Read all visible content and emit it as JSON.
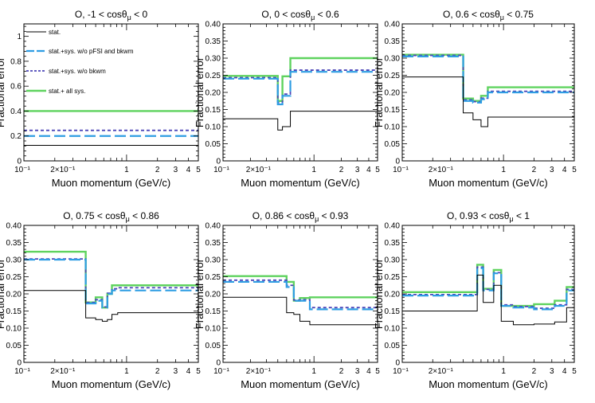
{
  "figure": {
    "shared_xlabel": "Muon momentum (GeV/c)",
    "shared_ylabel": "Fractional error"
  },
  "legend": [
    {
      "series": "stat",
      "label": "stat."
    },
    {
      "series": "stat_sys_no_pfsi_bkwm",
      "label": "stat.+sys. w/o pFSI and bkwm"
    },
    {
      "series": "stat_sys_no_bkwm",
      "label": "stat.+sys. w/o bkwm"
    },
    {
      "series": "stat_all_sys",
      "label": "stat.+ all sys."
    }
  ],
  "styles": {
    "stat": {
      "color": "#000000",
      "width": 1.0,
      "dash": ""
    },
    "stat_sys_no_pfsi_bkwm": {
      "color": "#2f9de3",
      "width": 2.2,
      "dash": "14,5"
    },
    "stat_sys_no_bkwm": {
      "color": "#4b45b8",
      "width": 1.8,
      "dash": "4,3"
    },
    "stat_all_sys": {
      "color": "#5fd35f",
      "width": 2.4,
      "dash": ""
    }
  },
  "chart_data": [
    {
      "type": "line",
      "step": true,
      "title": "O, -1 < cosθ_μ < 0",
      "title_parts": {
        "main": "O, -1 < cosθ",
        "sub": "μ",
        "tail": " < 0"
      },
      "xlabel": "Muon momentum (GeV/c)",
      "ylabel": "Fractional error",
      "xscale": "log",
      "xlim": [
        0.1,
        5
      ],
      "ylim": [
        0,
        1.1
      ],
      "yticks": [
        0,
        0.2,
        0.4,
        0.6,
        0.8,
        1
      ],
      "ytick_labels": [
        "0",
        "0.2",
        "0.4",
        "0.6",
        "0.8",
        "1"
      ],
      "xticks": [
        0.1,
        0.2,
        1,
        2,
        3,
        4,
        5
      ],
      "xtick_labels": [
        "10⁻¹",
        "2×10⁻¹",
        "1",
        "2",
        "3",
        "4",
        "5"
      ],
      "legend_position": "top-left",
      "bin_edges": [
        0.1,
        5
      ],
      "series": [
        {
          "name": "stat",
          "values": [
            0.125
          ]
        },
        {
          "name": "stat_sys_no_pfsi_bkwm",
          "values": [
            0.2
          ]
        },
        {
          "name": "stat_sys_no_bkwm",
          "values": [
            0.245
          ]
        },
        {
          "name": "stat_all_sys",
          "values": [
            0.4
          ]
        }
      ]
    },
    {
      "type": "line",
      "step": true,
      "title": "O, 0 < cosθ_μ < 0.6",
      "title_parts": {
        "main": "O, 0 < cosθ",
        "sub": "μ",
        "tail": " < 0.6"
      },
      "xlabel": "Muon momentum (GeV/c)",
      "ylabel": "Fractional error",
      "xscale": "log",
      "xlim": [
        0.1,
        5
      ],
      "ylim": [
        0,
        0.4
      ],
      "yticks": [
        0,
        0.05,
        0.1,
        0.15,
        0.2,
        0.25,
        0.3,
        0.35,
        0.4
      ],
      "ytick_labels": [
        "0",
        "0.05",
        "0.10",
        "0.15",
        "0.20",
        "0.25",
        "0.30",
        "0.35",
        "0.40"
      ],
      "xticks": [
        0.1,
        0.2,
        1,
        2,
        3,
        4,
        5
      ],
      "xtick_labels": [
        "10⁻¹",
        "2×10⁻¹",
        "1",
        "2",
        "3",
        "4",
        "5"
      ],
      "bin_edges": [
        0.1,
        0.4,
        0.45,
        0.55,
        5
      ],
      "series": [
        {
          "name": "stat",
          "values": [
            0.123,
            0.09,
            0.1,
            0.145
          ]
        },
        {
          "name": "stat_sys_no_pfsi_bkwm",
          "values": [
            0.24,
            0.165,
            0.19,
            0.26
          ]
        },
        {
          "name": "stat_sys_no_bkwm",
          "values": [
            0.243,
            0.17,
            0.195,
            0.265
          ]
        },
        {
          "name": "stat_all_sys",
          "values": [
            0.248,
            0.175,
            0.247,
            0.3
          ]
        }
      ]
    },
    {
      "type": "line",
      "step": true,
      "title": "O, 0.6 < cosθ_μ < 0.75",
      "title_parts": {
        "main": "O, 0.6 < cosθ",
        "sub": "μ",
        "tail": " < 0.75"
      },
      "xlabel": "Muon momentum (GeV/c)",
      "ylabel": "Fractional error",
      "xscale": "log",
      "xlim": [
        0.1,
        5
      ],
      "ylim": [
        0,
        0.4
      ],
      "yticks": [
        0,
        0.05,
        0.1,
        0.15,
        0.2,
        0.25,
        0.3,
        0.35,
        0.4
      ],
      "ytick_labels": [
        "0",
        "0.05",
        "0.10",
        "0.15",
        "0.20",
        "0.25",
        "0.30",
        "0.35",
        "0.40"
      ],
      "xticks": [
        0.1,
        0.2,
        1,
        2,
        3,
        4,
        5
      ],
      "xtick_labels": [
        "10⁻¹",
        "2×10⁻¹",
        "1",
        "2",
        "3",
        "4",
        "5"
      ],
      "bin_edges": [
        0.1,
        0.4,
        0.5,
        0.6,
        0.7,
        5
      ],
      "series": [
        {
          "name": "stat",
          "values": [
            0.245,
            0.14,
            0.12,
            0.1,
            0.128
          ]
        },
        {
          "name": "stat_sys_no_pfsi_bkwm",
          "values": [
            0.305,
            0.175,
            0.17,
            0.18,
            0.2
          ]
        },
        {
          "name": "stat_sys_no_bkwm",
          "values": [
            0.308,
            0.178,
            0.173,
            0.183,
            0.203
          ]
        },
        {
          "name": "stat_all_sys",
          "values": [
            0.31,
            0.182,
            0.175,
            0.19,
            0.215
          ]
        }
      ]
    },
    {
      "type": "line",
      "step": true,
      "title": "O, 0.75 < cosθ_μ < 0.86",
      "title_parts": {
        "main": "O, 0.75 < cosθ",
        "sub": "μ",
        "tail": " < 0.86"
      },
      "xlabel": "Muon momentum (GeV/c)",
      "ylabel": "Fractional error",
      "xscale": "log",
      "xlim": [
        0.1,
        5
      ],
      "ylim": [
        0,
        0.4
      ],
      "yticks": [
        0,
        0.05,
        0.1,
        0.15,
        0.2,
        0.25,
        0.3,
        0.35,
        0.4
      ],
      "ytick_labels": [
        "0",
        "0.05",
        "0.10",
        "0.15",
        "0.20",
        "0.25",
        "0.30",
        "0.35",
        "0.40"
      ],
      "xticks": [
        0.1,
        0.2,
        1,
        2,
        3,
        4,
        5
      ],
      "xtick_labels": [
        "10⁻¹",
        "2×10⁻¹",
        "1",
        "2",
        "3",
        "4",
        "5"
      ],
      "bin_edges": [
        0.1,
        0.4,
        0.5,
        0.58,
        0.65,
        0.72,
        0.82,
        5
      ],
      "series": [
        {
          "name": "stat",
          "values": [
            0.21,
            0.13,
            0.125,
            0.12,
            0.125,
            0.14,
            0.145
          ]
        },
        {
          "name": "stat_sys_no_pfsi_bkwm",
          "values": [
            0.3,
            0.172,
            0.18,
            0.16,
            0.2,
            0.21,
            0.21
          ]
        },
        {
          "name": "stat_sys_no_bkwm",
          "values": [
            0.302,
            0.175,
            0.183,
            0.162,
            0.202,
            0.215,
            0.218
          ]
        },
        {
          "name": "stat_all_sys",
          "values": [
            0.323,
            0.175,
            0.19,
            0.16,
            0.2,
            0.225,
            0.225
          ]
        }
      ]
    },
    {
      "type": "line",
      "step": true,
      "title": "O, 0.86 < cosθ_μ < 0.93",
      "title_parts": {
        "main": "O, 0.86 < cosθ",
        "sub": "μ",
        "tail": " < 0.93"
      },
      "xlabel": "Muon momentum (GeV/c)",
      "ylabel": "Fractional error",
      "xscale": "log",
      "xlim": [
        0.1,
        5
      ],
      "ylim": [
        0,
        0.4
      ],
      "yticks": [
        0,
        0.05,
        0.1,
        0.15,
        0.2,
        0.25,
        0.3,
        0.35,
        0.4
      ],
      "ytick_labels": [
        "0",
        "0.05",
        "0.10",
        "0.15",
        "0.20",
        "0.25",
        "0.30",
        "0.35",
        "0.40"
      ],
      "xticks": [
        0.1,
        0.2,
        1,
        2,
        3,
        4,
        5
      ],
      "xtick_labels": [
        "10⁻¹",
        "2×10⁻¹",
        "1",
        "2",
        "3",
        "4",
        "5"
      ],
      "bin_edges": [
        0.1,
        0.5,
        0.6,
        0.7,
        0.9,
        5
      ],
      "series": [
        {
          "name": "stat",
          "values": [
            0.19,
            0.145,
            0.14,
            0.12,
            0.11
          ]
        },
        {
          "name": "stat_sys_no_pfsi_bkwm",
          "values": [
            0.235,
            0.22,
            0.18,
            0.18,
            0.155
          ]
        },
        {
          "name": "stat_sys_no_bkwm",
          "values": [
            0.24,
            0.225,
            0.182,
            0.183,
            0.16
          ]
        },
        {
          "name": "stat_all_sys",
          "values": [
            0.252,
            0.235,
            0.18,
            0.188,
            0.19
          ]
        }
      ]
    },
    {
      "type": "line",
      "step": true,
      "title": "O, 0.93 < cosθ_μ < 1",
      "title_parts": {
        "main": "O, 0.93 < cosθ",
        "sub": "μ",
        "tail": " < 1"
      },
      "xlabel": "Muon momentum (GeV/c)",
      "ylabel": "Fractional error",
      "xscale": "log",
      "xlim": [
        0.1,
        5
      ],
      "ylim": [
        0,
        0.4
      ],
      "yticks": [
        0,
        0.05,
        0.1,
        0.15,
        0.2,
        0.25,
        0.3,
        0.35,
        0.4
      ],
      "ytick_labels": [
        "0",
        "0.05",
        "0.10",
        "0.15",
        "0.20",
        "0.25",
        "0.30",
        "0.35",
        "0.40"
      ],
      "xticks": [
        0.1,
        0.2,
        1,
        2,
        3,
        4,
        5
      ],
      "xtick_labels": [
        "10⁻¹",
        "2×10⁻¹",
        "1",
        "2",
        "3",
        "4",
        "5"
      ],
      "bin_edges": [
        0.1,
        0.55,
        0.63,
        0.8,
        0.95,
        1.25,
        2.0,
        3.2,
        4.2,
        5
      ],
      "series": [
        {
          "name": "stat",
          "values": [
            0.15,
            0.255,
            0.175,
            0.225,
            0.12,
            0.11,
            0.112,
            0.118,
            0.16
          ]
        },
        {
          "name": "stat_sys_no_pfsi_bkwm",
          "values": [
            0.195,
            0.275,
            0.21,
            0.26,
            0.165,
            0.16,
            0.155,
            0.165,
            0.21
          ]
        },
        {
          "name": "stat_sys_no_bkwm",
          "values": [
            0.198,
            0.278,
            0.213,
            0.262,
            0.168,
            0.163,
            0.158,
            0.168,
            0.213
          ]
        },
        {
          "name": "stat_all_sys",
          "values": [
            0.205,
            0.285,
            0.215,
            0.27,
            0.165,
            0.165,
            0.17,
            0.18,
            0.22
          ]
        }
      ]
    }
  ]
}
